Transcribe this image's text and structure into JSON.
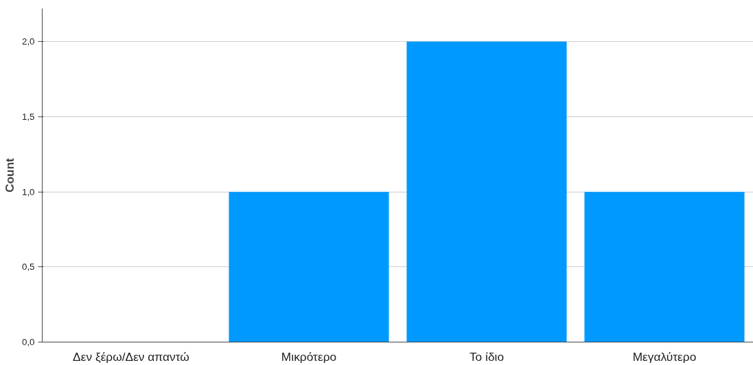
{
  "chart_data": {
    "type": "bar",
    "ylabel": "Count",
    "categories": [
      "Δεν ξέρω/Δεν απαντώ",
      "Μικρότερο",
      "Το ίδιο",
      "Μεγαλύτερο"
    ],
    "values": [
      0,
      1,
      2,
      1
    ],
    "color": "#0099ff",
    "ylim": [
      0,
      2.22
    ],
    "yticks": [
      {
        "value": 0,
        "label": "0,0"
      },
      {
        "value": 0.5,
        "label": "0,5"
      },
      {
        "value": 1,
        "label": "1,0"
      },
      {
        "value": 1.5,
        "label": "1,5"
      },
      {
        "value": 2,
        "label": "2,0"
      }
    ],
    "grid": "y"
  }
}
